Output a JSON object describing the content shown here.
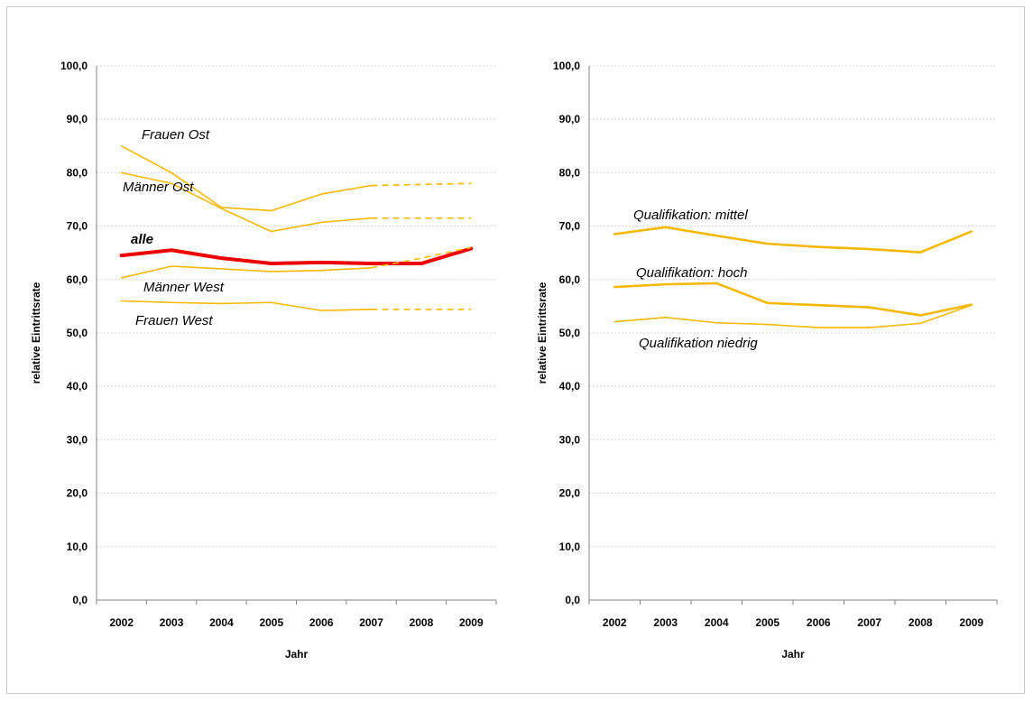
{
  "colors": {
    "series": "#f5b800",
    "highlight": "#ee0000",
    "grid": "#c8c8c8",
    "axis": "#808080"
  },
  "chart_data": [
    {
      "type": "line",
      "title": "",
      "xlabel": "Jahr",
      "ylabel": "relative Eintrittsrate",
      "ylim": [
        0,
        100
      ],
      "yticks": [
        "0,0",
        "10,0",
        "20,0",
        "30,0",
        "40,0",
        "50,0",
        "60,0",
        "70,0",
        "80,0",
        "90,0",
        "100,0"
      ],
      "categories": [
        "2002",
        "2003",
        "2004",
        "2005",
        "2006",
        "2007",
        "2008",
        "2009"
      ],
      "grid": true,
      "series": [
        {
          "name": "Frauen Ost",
          "values": [
            85.0,
            80.0,
            73.5,
            72.9,
            76.0,
            77.6,
            77.8,
            78.0
          ],
          "dashed_from_index": 5,
          "weight": "thin",
          "color": "#f5b800"
        },
        {
          "name": "Männer Ost",
          "values": [
            80.0,
            78.0,
            73.3,
            69.0,
            70.7,
            71.5,
            71.5,
            71.5
          ],
          "dashed_from_index": 5,
          "weight": "thin",
          "color": "#f5b800"
        },
        {
          "name": "alle",
          "values": [
            64.5,
            65.5,
            64.0,
            63.0,
            63.2,
            63.0,
            63.0,
            65.8
          ],
          "weight": "bold",
          "color": "#ee0000"
        },
        {
          "name": "Männer West",
          "values": [
            60.3,
            62.5,
            62.0,
            61.5,
            61.7,
            62.2,
            64.0,
            66.0
          ],
          "dashed_from_index": 5,
          "weight": "thin",
          "color": "#f5b800"
        },
        {
          "name": "Frauen West",
          "values": [
            56.0,
            55.7,
            55.5,
            55.7,
            54.2,
            54.4,
            54.4,
            54.4
          ],
          "dashed_from_index": 5,
          "weight": "thin",
          "color": "#f5b800"
        }
      ]
    },
    {
      "type": "line",
      "title": "",
      "xlabel": "Jahr",
      "ylabel": "relative Eintrittsrate",
      "ylim": [
        0,
        100
      ],
      "yticks": [
        "0,0",
        "10,0",
        "20,0",
        "30,0",
        "40,0",
        "50,0",
        "60,0",
        "70,0",
        "80,0",
        "90,0",
        "100,0"
      ],
      "categories": [
        "2002",
        "2003",
        "2004",
        "2005",
        "2006",
        "2007",
        "2008",
        "2009"
      ],
      "grid": true,
      "series": [
        {
          "name": "Qualifikation: mittel",
          "values": [
            68.5,
            69.8,
            68.2,
            66.7,
            66.1,
            65.7,
            65.1,
            69.0
          ],
          "weight": "medium",
          "color": "#f5b800"
        },
        {
          "name": "Qualifikation: hoch",
          "values": [
            58.6,
            59.1,
            59.3,
            55.6,
            55.2,
            54.8,
            53.3,
            55.3
          ],
          "weight": "medium",
          "color": "#f5b800"
        },
        {
          "name": "Qualifikation niedrig",
          "values": [
            52.1,
            52.9,
            51.9,
            51.6,
            51.0,
            51.0,
            51.8,
            55.2
          ],
          "weight": "thin",
          "color": "#f5b800"
        }
      ]
    }
  ]
}
